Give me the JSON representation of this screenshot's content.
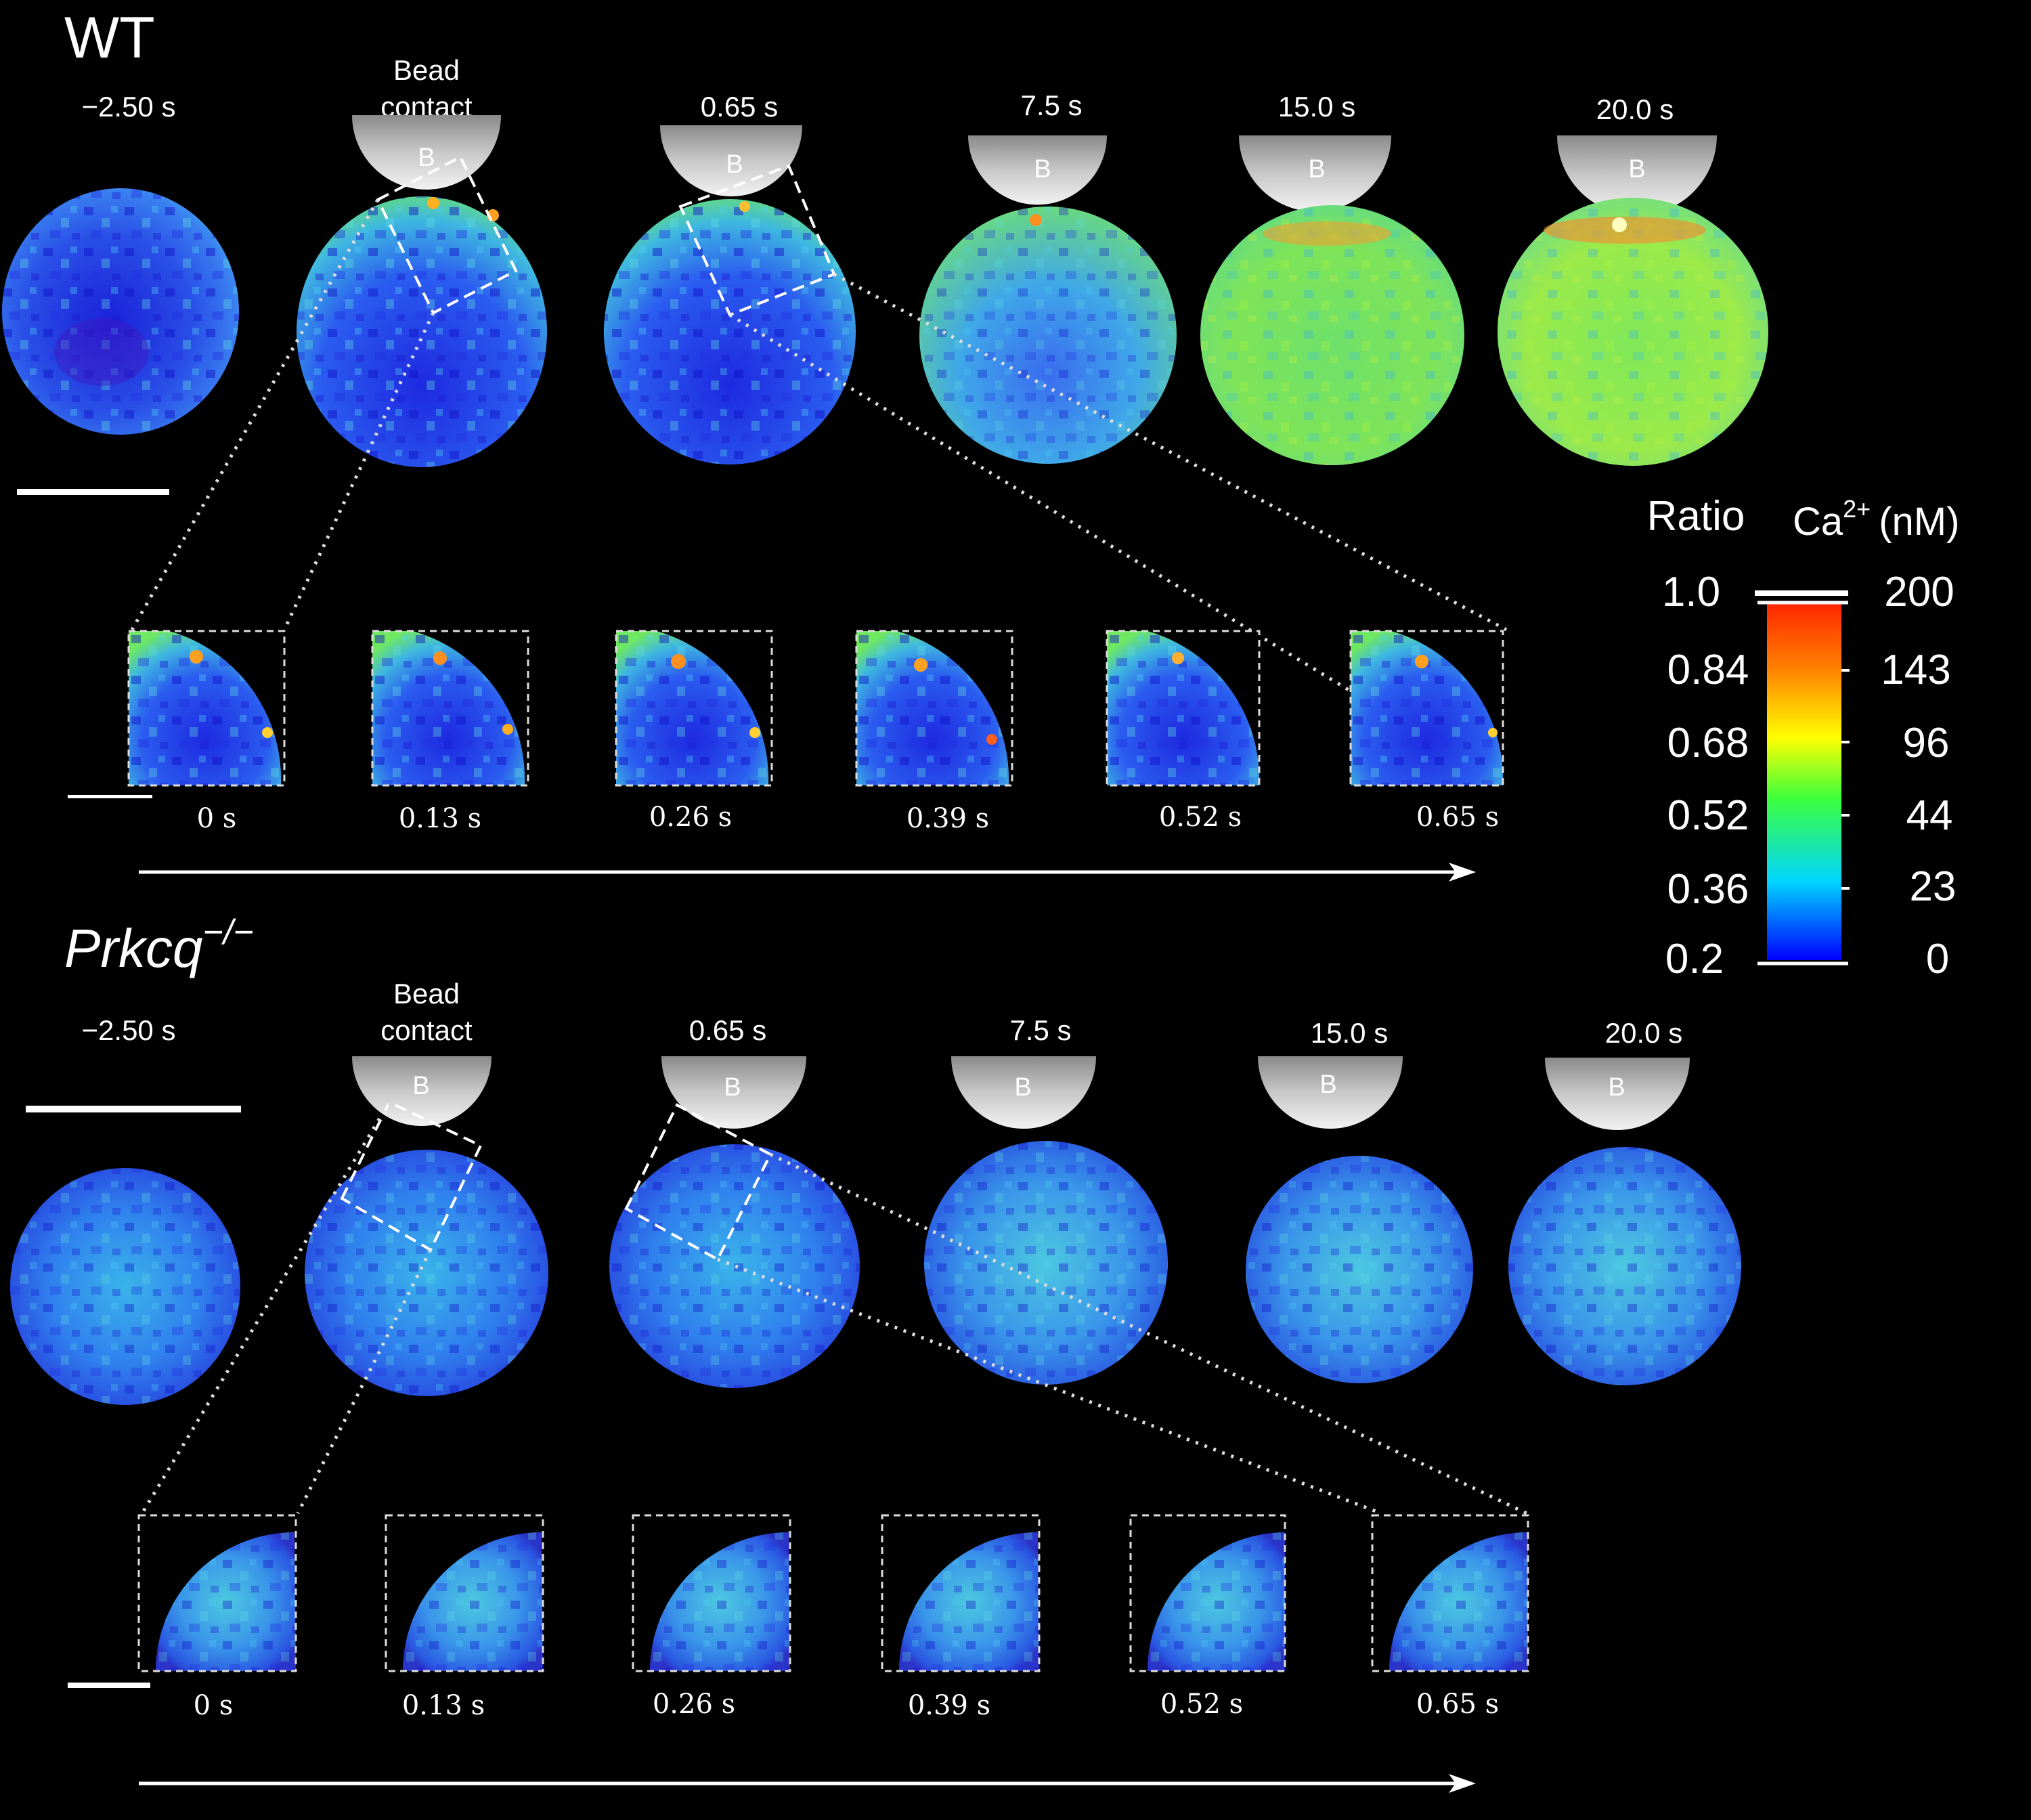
{
  "panels": [
    {
      "id": "wt",
      "label": "WT",
      "label_superscript": "",
      "time_labels": [
        "−2.50 s",
        "Bead",
        "contact",
        "0.65 s",
        "7.5 s",
        "15.0 s",
        "20.0 s"
      ],
      "bead_label": "B",
      "zoom_labels": [
        "0 s",
        "0.13 s",
        "0.26 s",
        "0.39 s",
        "0.52 s",
        "0.65 s"
      ]
    },
    {
      "id": "prkcq",
      "label": "Prkcq",
      "label_superscript": "−/−",
      "time_labels": [
        "−2.50 s",
        "Bead",
        "contact",
        "0.65 s",
        "7.5 s",
        "15.0 s",
        "20.0 s"
      ],
      "bead_label": "B",
      "zoom_labels": [
        "0 s",
        "0.13 s",
        "0.26 s",
        "0.39 s",
        "0.52 s",
        "0.65 s"
      ]
    }
  ],
  "colorbar": {
    "ratio_title": "Ratio",
    "ca_title": "Ca",
    "ca_superscript": "2+",
    "ca_unit": "(nM)",
    "ratio_ticks": [
      "1.0",
      "0.84",
      "0.68",
      "0.52",
      "0.36",
      "0.2"
    ],
    "ca_ticks": [
      "200",
      "143",
      "96",
      "44",
      "23",
      "0"
    ],
    "colors": [
      "#0000ff",
      "#00d5ff",
      "#3cff3c",
      "#ffff00",
      "#ff8800",
      "#ff2200"
    ]
  }
}
